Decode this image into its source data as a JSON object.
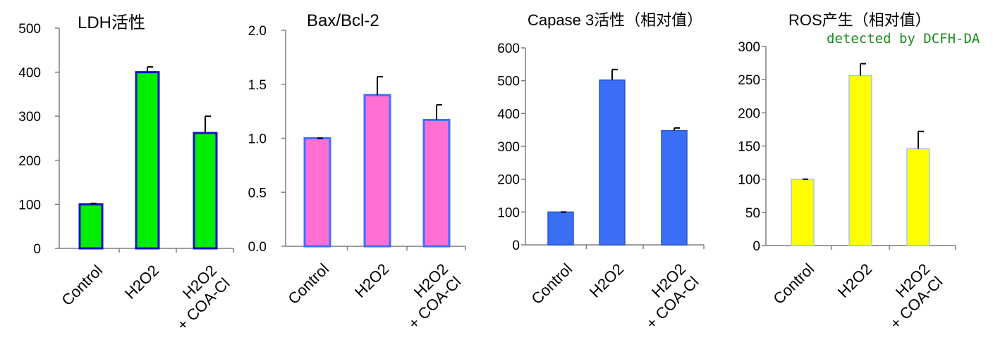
{
  "colors": {
    "axis": "#7f7f7f",
    "text": "#000000",
    "error_bar": "#000000",
    "annotation": "#1a8a1a"
  },
  "annotation": "detected by DCFH-DA",
  "chart_data": [
    {
      "type": "bar",
      "title": "LDH活性",
      "xlabel": "",
      "ylabel": "",
      "categories": [
        "Control",
        "H2O2",
        "H2O2\n+ COA-Cl"
      ],
      "series": [
        {
          "values": [
            100,
            400,
            262
          ],
          "errors": [
            2,
            12,
            38
          ]
        }
      ],
      "ylim": [
        0,
        500
      ],
      "yticks": [
        "0",
        "100",
        "200",
        "300",
        "400",
        "500"
      ],
      "grid": false,
      "colors": {
        "fill": "#00ee00",
        "stroke": "#1010cc"
      }
    },
    {
      "type": "bar",
      "title": "Bax/Bcl-2",
      "xlabel": "",
      "ylabel": "",
      "categories": [
        "Control",
        "H2O2",
        "H2O2\n+ COA-Cl"
      ],
      "series": [
        {
          "values": [
            1.0,
            1.4,
            1.17
          ],
          "errors": [
            0.0,
            0.17,
            0.14
          ]
        }
      ],
      "ylim": [
        0,
        2.0
      ],
      "yticks": [
        "0.0",
        "0.5",
        "1.0",
        "1.5",
        "2.0"
      ],
      "grid": false,
      "colors": {
        "fill": "#ff6fd4",
        "stroke": "#3f6fff"
      }
    },
    {
      "type": "bar",
      "title": "Capase 3活性（相对值）",
      "xlabel": "",
      "ylabel": "",
      "categories": [
        "Control",
        "H2O2",
        "H2O2\n+ COA-Cl"
      ],
      "series": [
        {
          "values": [
            100,
            502,
            348
          ],
          "errors": [
            0,
            32,
            8
          ]
        }
      ],
      "ylim": [
        0,
        600
      ],
      "yticks": [
        "0",
        "100",
        "200",
        "300",
        "400",
        "500",
        "600"
      ],
      "grid": false,
      "colors": {
        "fill": "#3a6ff5",
        "stroke": "#2a54d0"
      }
    },
    {
      "type": "bar",
      "title": "ROS产生（相对值）",
      "xlabel": "",
      "ylabel": "",
      "categories": [
        "Control",
        "H2O2",
        "H2O2\n+ COA-Cl"
      ],
      "series": [
        {
          "values": [
            100,
            256,
            146
          ],
          "errors": [
            0,
            18,
            26
          ]
        }
      ],
      "ylim": [
        0,
        300
      ],
      "yticks": [
        "0",
        "50",
        "100",
        "150",
        "200",
        "250",
        "300"
      ],
      "grid": false,
      "colors": {
        "fill": "#ffff00",
        "stroke": "#a8c4e6"
      }
    }
  ]
}
